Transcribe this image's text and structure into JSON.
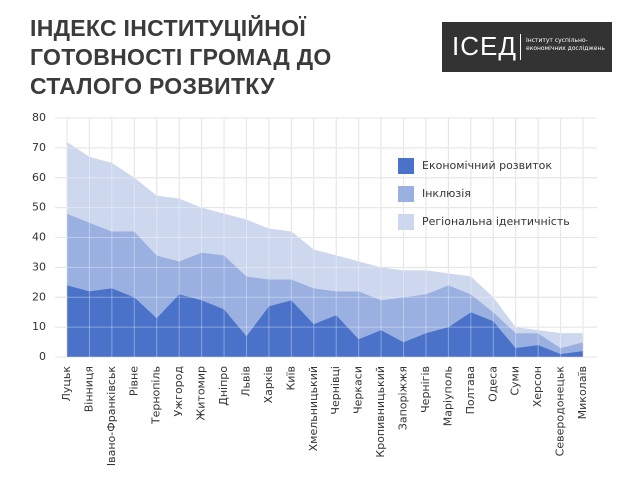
{
  "header": {
    "title": "ІНДЕКС ІНСТИТУЦІЙНОЇ ГОТОВНОСТІ ГРОМАД ДО СТАЛОГО РОЗВИТКУ",
    "logo": {
      "abbr": "ІСЕД",
      "name": "Інститут суспільно-економічних досліджень"
    }
  },
  "chart_data": {
    "type": "stacked-area",
    "categories": [
      "Луцьк",
      "Вінниця",
      "Івано-Франківськ",
      "Рівне",
      "Тернопіль",
      "Ужгород",
      "Житомир",
      "Дніпро",
      "Львів",
      "Харків",
      "Київ",
      "Хмельницький",
      "Чернівці",
      "Черкаси",
      "Кропивницький",
      "Запоріжжя",
      "Чернігів",
      "Маріуполь",
      "Полтава",
      "Одеса",
      "Суми",
      "Херсон",
      "Северодонецьк",
      "Миколаїв"
    ],
    "series": [
      {
        "name": "Економічний розвиток",
        "color": "#4a72c9",
        "values": [
          24,
          22,
          23,
          20,
          13,
          21,
          19,
          16,
          7,
          17,
          19,
          11,
          14,
          6,
          9,
          5,
          8,
          10,
          15,
          12,
          3,
          4,
          1,
          2
        ]
      },
      {
        "name": "Інклюзія",
        "color": "#9ab0e0",
        "values": [
          24,
          23,
          19,
          22,
          21,
          11,
          16,
          18,
          20,
          9,
          7,
          12,
          8,
          16,
          10,
          15,
          13,
          14,
          6,
          3,
          5,
          4,
          2,
          3
        ]
      },
      {
        "name": "Регіональна ідентичність",
        "color": "#cdd7ed",
        "values": [
          24,
          22,
          23,
          18,
          20,
          21,
          15,
          14,
          19,
          17,
          16,
          13,
          12,
          10,
          11,
          9,
          8,
          4,
          6,
          5,
          2,
          1,
          5,
          3
        ]
      }
    ],
    "ylim": [
      0,
      80
    ],
    "yticks": [
      0,
      10,
      20,
      30,
      40,
      50,
      60,
      70,
      80
    ],
    "grid": true,
    "legend": "inside-right"
  }
}
